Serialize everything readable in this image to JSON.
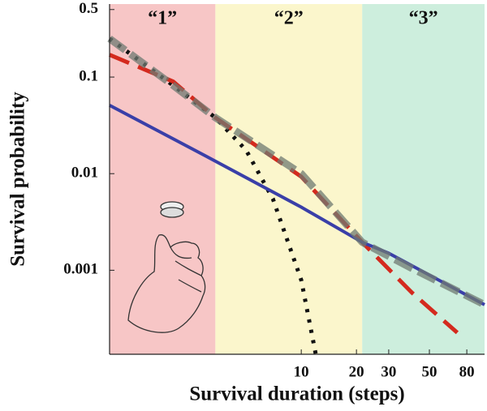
{
  "chart_data": {
    "type": "line",
    "x_label": "Survival duration (steps)",
    "y_label": "Survival probability",
    "xscale": "log",
    "yscale": "log",
    "xlim": [
      0.9,
      100
    ],
    "ylim": [
      0.000135,
      0.57
    ],
    "xticks": [
      10,
      20,
      30,
      50,
      80
    ],
    "yticks": [
      0.001,
      0.01,
      0.1,
      0.5
    ],
    "regions": [
      {
        "label": "“1”",
        "from": 0.9,
        "to": 3.4,
        "color": "#f7c6c6"
      },
      {
        "label": "“2”",
        "from": 3.4,
        "to": 21.5,
        "color": "#fbf6cc"
      },
      {
        "label": "“3”",
        "from": 21.5,
        "to": 100,
        "color": "#cdeedd"
      }
    ],
    "series": [
      {
        "color": "#111111",
        "style": "dotted",
        "x": [
          0.9,
          2,
          3.4,
          5,
          7,
          10,
          12
        ],
        "values": [
          0.25,
          0.082,
          0.038,
          0.0175,
          0.0055,
          0.00079,
          0.000135
        ]
      },
      {
        "color": "#d42a1e",
        "style": "dashed",
        "x": [
          0.9,
          2,
          3.4,
          10,
          21.5,
          40,
          71
        ],
        "values": [
          0.17,
          0.09,
          0.038,
          0.0093,
          0.00195,
          0.00059,
          0.000226
        ]
      },
      {
        "color": "#3a3fa8",
        "style": "solid",
        "x": [
          0.9,
          3,
          10,
          21.5,
          30,
          100
        ],
        "values": [
          0.051,
          0.0153,
          0.0045,
          0.00195,
          0.0015,
          0.00044
        ]
      },
      {
        "color": "#6f7a72",
        "style": "thick-dashed",
        "x": [
          0.9,
          2,
          3.4,
          10,
          21.5,
          40,
          100
        ],
        "values": [
          0.25,
          0.082,
          0.038,
          0.01,
          0.00195,
          0.00105,
          0.00044
        ]
      }
    ]
  }
}
